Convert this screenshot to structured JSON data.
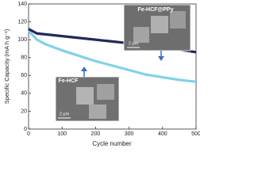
{
  "chart_data": {
    "type": "line",
    "x_label": "Cycle number",
    "y_label": "Specific Capacity (mA h g⁻¹)",
    "x": [
      0,
      25,
      50,
      100,
      150,
      200,
      250,
      300,
      350,
      400,
      450,
      500
    ],
    "series": [
      {
        "name": "Fe-HCF@PPy",
        "color": "#1f2a5c",
        "values": [
          112,
          107,
          106,
          104,
          102,
          100,
          98,
          96,
          94,
          92,
          89,
          86
        ]
      },
      {
        "name": "Fe-HCF",
        "color": "#7fd3e6",
        "values": [
          110,
          100,
          95,
          88,
          82,
          76,
          71,
          66,
          61,
          58,
          55,
          53
        ]
      }
    ],
    "xlim": [
      0,
      500
    ],
    "xticks": [
      0,
      100,
      200,
      300,
      400,
      500
    ],
    "ylim": [
      0,
      140
    ],
    "yticks": [
      0,
      20,
      40,
      60,
      80,
      100,
      120,
      140
    ],
    "insets": [
      {
        "label": "Fe-HCF@PPy",
        "scale": "2 μm"
      },
      {
        "label": "Fe-HCF",
        "scale": "2 μm"
      }
    ]
  }
}
